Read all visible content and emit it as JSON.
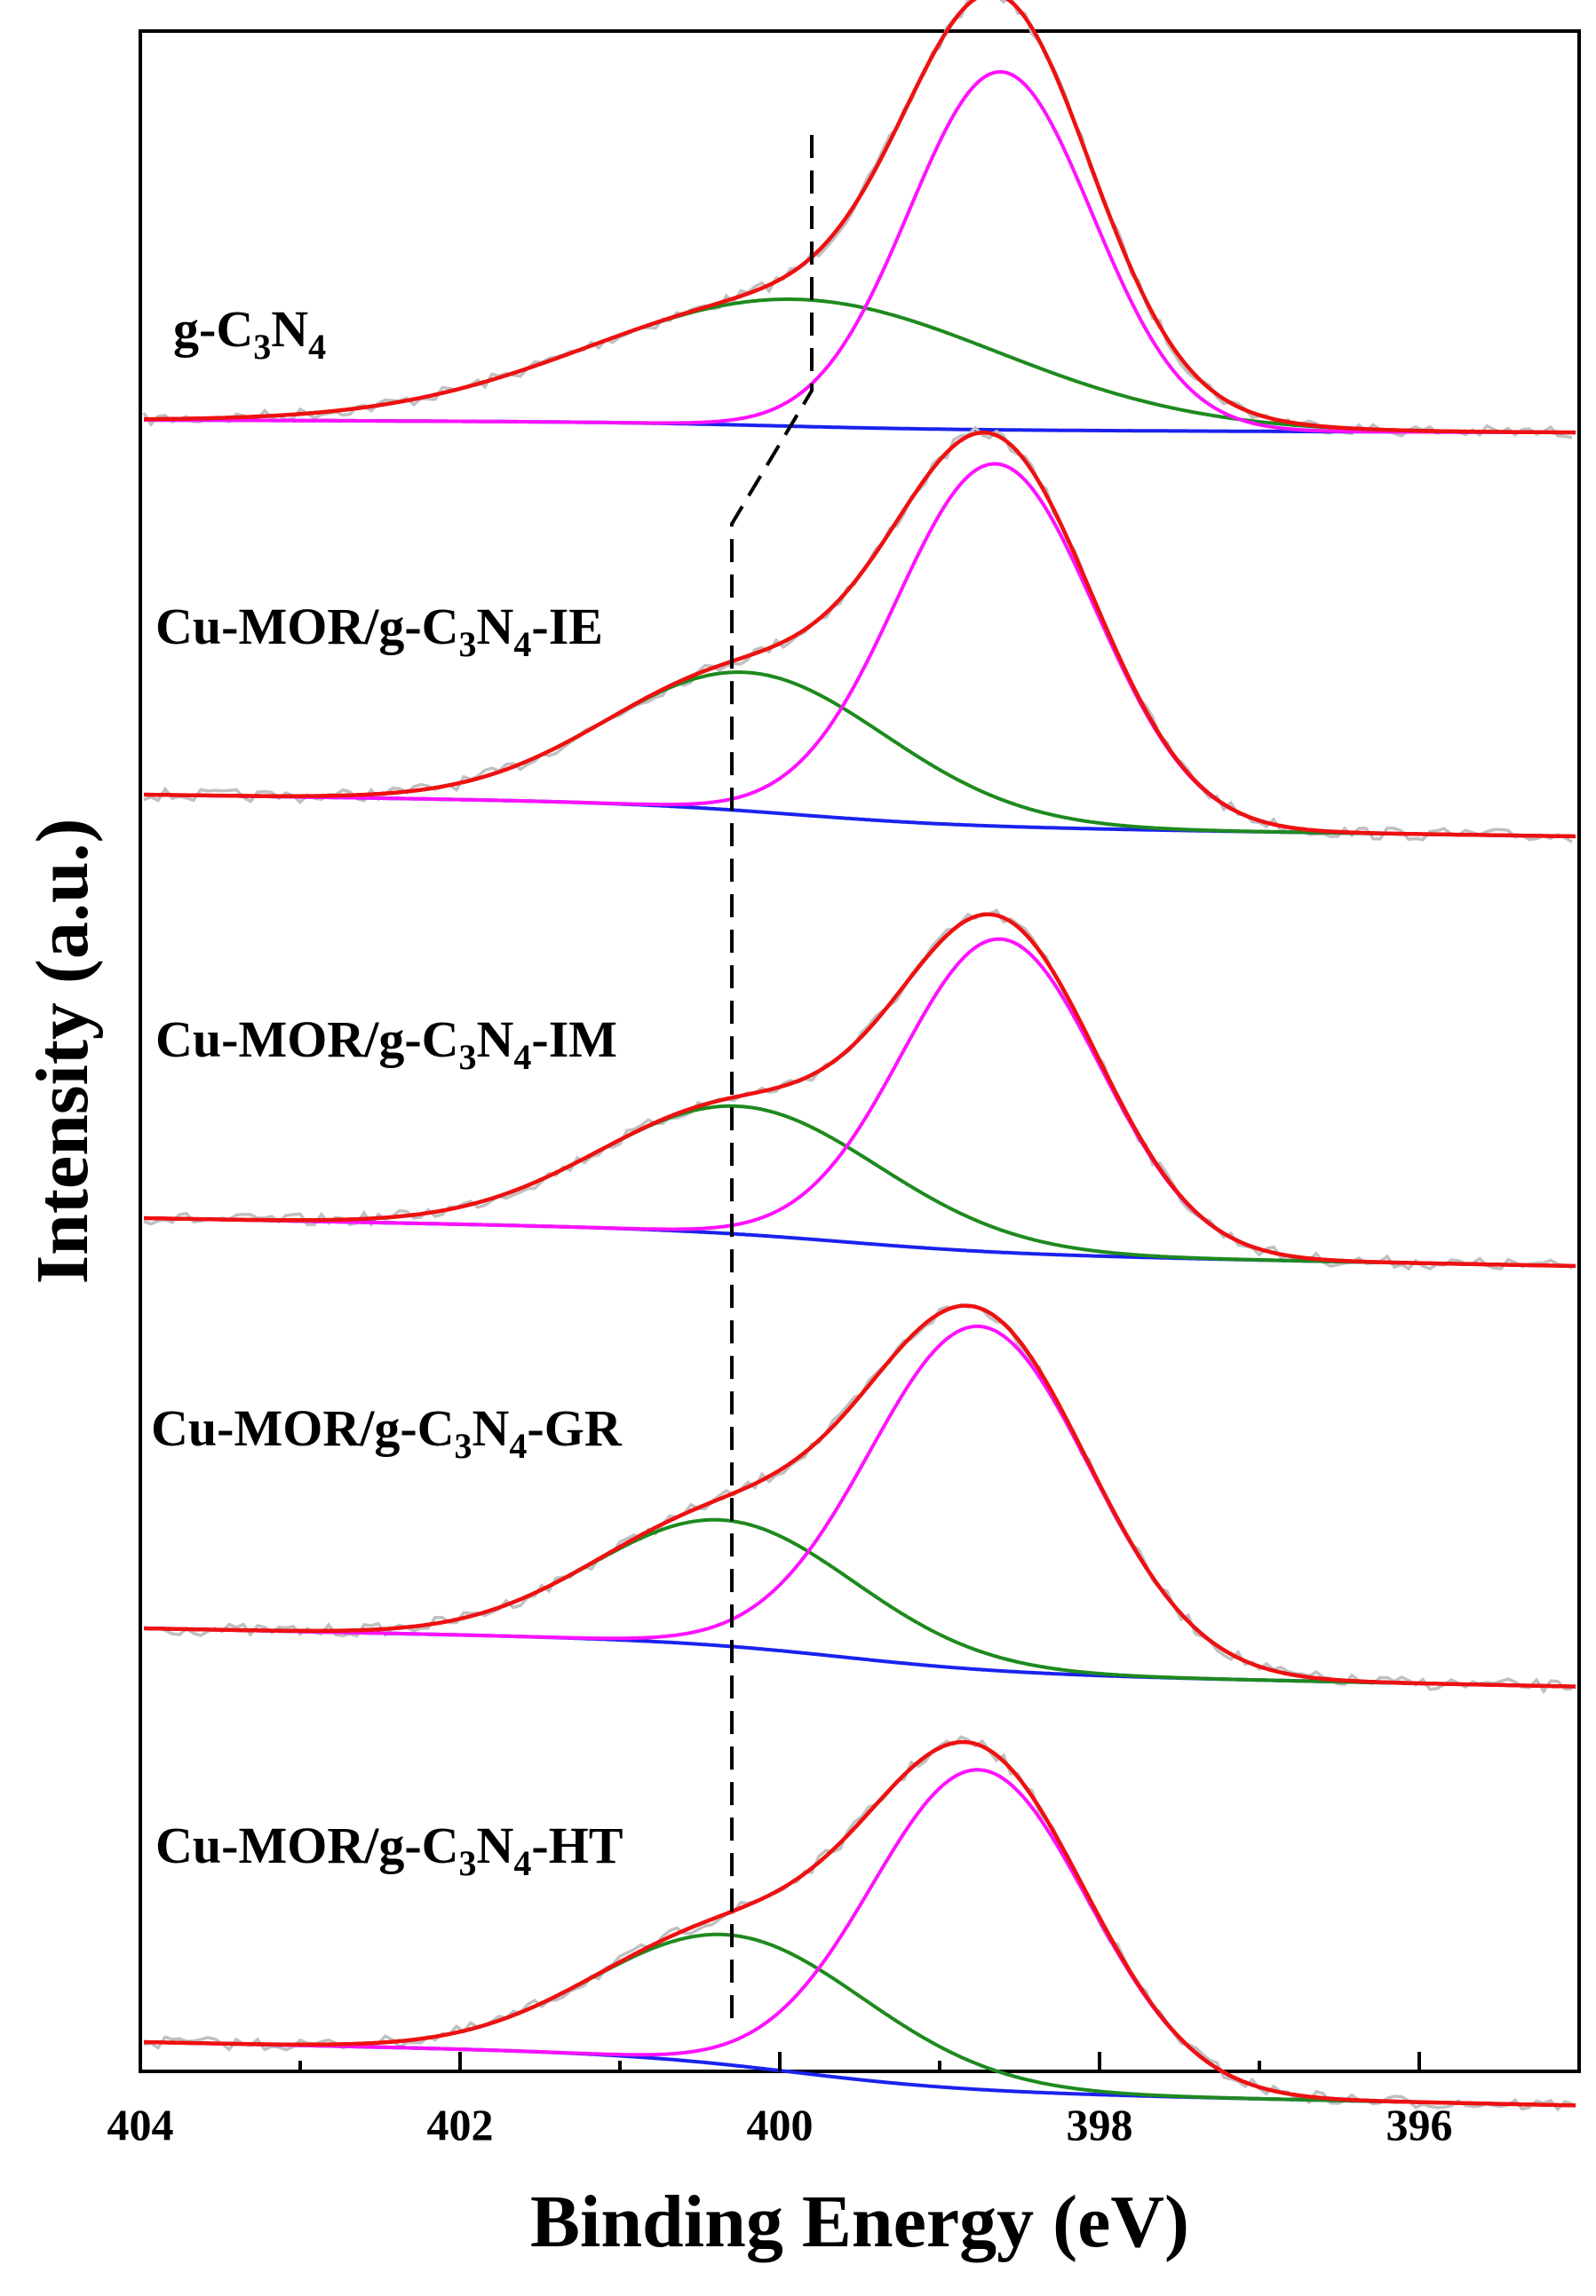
{
  "chart_data": {
    "type": "line",
    "title": "",
    "xlabel": "Binding Energy (eV)",
    "ylabel": "Intensity (a.u.)",
    "xlim": [
      404,
      395
    ],
    "x_reversed": true,
    "xticks": [
      404,
      402,
      400,
      398,
      396
    ],
    "xticks_minor": [
      403,
      401,
      399,
      397,
      395
    ],
    "legend": "none",
    "grid": false,
    "colors": {
      "raw": "#c0c0c0",
      "envelope": "#ee1111",
      "peak_main": "#ff11ff",
      "peak_shoulder": "#1e8a1e",
      "baseline": "#1a22ee",
      "marker": "#000000"
    },
    "series_names": [
      "raw data",
      "fitted envelope",
      "main peak (~398.7 eV)",
      "shoulder peak (~400.2 eV)",
      "background"
    ],
    "panels": [
      {
        "label": "g-C3N4",
        "label_parts": [
          {
            "t": "g-C"
          },
          {
            "t": "3",
            "sub": true
          },
          {
            "t": "N"
          },
          {
            "t": "4",
            "sub": true
          }
        ],
        "baseline_intensity": [
          1.0,
          0.83
        ],
        "baseline_center_eV": 400.0,
        "peaks": [
          {
            "name": "main",
            "center_eV": 398.62,
            "fwhm_eV": 1.35,
            "height": 8.4
          },
          {
            "name": "shoulder",
            "center_eV": 399.9,
            "fwhm_eV": 3.0,
            "height": 2.98
          }
        ],
        "marker_eV": 399.8
      },
      {
        "label": "Cu-MOR/g-C3N4-IE",
        "label_parts": [
          {
            "t": "Cu-MOR/g-C"
          },
          {
            "t": "3",
            "sub": true
          },
          {
            "t": "N"
          },
          {
            "t": "4",
            "sub": true
          },
          {
            "t": "-IE"
          }
        ],
        "baseline_intensity": [
          1.0,
          0.5
        ],
        "baseline_center_eV": 399.9,
        "peaks": [
          {
            "name": "main",
            "center_eV": 398.65,
            "fwhm_eV": 1.47,
            "height": 8.5
          },
          {
            "name": "shoulder",
            "center_eV": 400.2,
            "fwhm_eV": 2.06,
            "height": 3.25
          }
        ],
        "marker_eV": 400.3
      },
      {
        "label": "Cu-MOR/g-C3N4-IM",
        "label_parts": [
          {
            "t": "Cu-MOR/g-C"
          },
          {
            "t": "3",
            "sub": true
          },
          {
            "t": "N"
          },
          {
            "t": "4",
            "sub": true
          },
          {
            "t": "-IM"
          }
        ],
        "baseline_intensity": [
          1.0,
          0.5
        ],
        "baseline_center_eV": 399.6,
        "peaks": [
          {
            "name": "main",
            "center_eV": 398.62,
            "fwhm_eV": 1.47,
            "height": 7.35
          },
          {
            "name": "shoulder",
            "center_eV": 400.25,
            "fwhm_eV": 2.06,
            "height": 3.0
          }
        ],
        "marker_eV": 400.3
      },
      {
        "label": "Cu-MOR/g-C3N4-GR",
        "label_parts": [
          {
            "t": "Cu-MOR/g-C"
          },
          {
            "t": "3",
            "sub": true
          },
          {
            "t": "N"
          },
          {
            "t": "4",
            "sub": true
          },
          {
            "t": "-GR"
          }
        ],
        "baseline_intensity": [
          1.0,
          0.3
        ],
        "baseline_center_eV": 399.6,
        "peaks": [
          {
            "name": "main",
            "center_eV": 398.75,
            "fwhm_eV": 1.62,
            "height": 8.05
          },
          {
            "name": "shoulder",
            "center_eV": 400.35,
            "fwhm_eV": 1.92,
            "height": 2.95
          }
        ],
        "marker_eV": 400.3
      },
      {
        "label": "Cu-MOR/g-C3N4-HT",
        "label_parts": [
          {
            "t": "Cu-MOR/g-C"
          },
          {
            "t": "3",
            "sub": true
          },
          {
            "t": "N"
          },
          {
            "t": "4",
            "sub": true
          },
          {
            "t": "-HT"
          }
        ],
        "baseline_intensity": [
          1.0,
          0.2
        ],
        "baseline_center_eV": 399.9,
        "peaks": [
          {
            "name": "main",
            "center_eV": 398.75,
            "fwhm_eV": 1.6,
            "height": 7.5
          },
          {
            "name": "shoulder",
            "center_eV": 400.3,
            "fwhm_eV": 2.0,
            "height": 3.05
          }
        ],
        "marker_eV": 400.3
      }
    ]
  }
}
